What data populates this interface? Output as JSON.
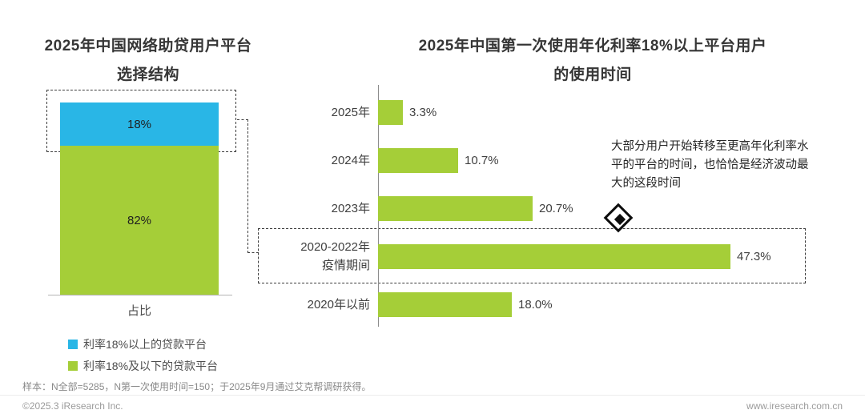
{
  "colors": {
    "green": "#a5ce38",
    "blue": "#29b6e6",
    "title_text": "#363636",
    "label_text": "#404040",
    "footer_text": "#9b9b9b"
  },
  "chart_data": [
    {
      "type": "bar",
      "subtype": "stacked_column",
      "title": "2025年中国网络助贷用户平台选择结构",
      "title_lines": [
        "2025年中国网络助贷用户平台",
        "选择结构"
      ],
      "categories": [
        "占比"
      ],
      "ylim": [
        0,
        100
      ],
      "legend_position": "bottom",
      "series": [
        {
          "name": "利率18%以上的贷款平台",
          "values": [
            18
          ],
          "label": "18%",
          "color": "#29b6e6"
        },
        {
          "name": "利率18%及以下的贷款平台",
          "values": [
            82
          ],
          "label": "82%",
          "color": "#a5ce38"
        }
      ],
      "highlight": "dashed box around the 18% segment, linked by dashed connector to the right chart's highlighted row"
    },
    {
      "type": "bar",
      "orientation": "horizontal",
      "title": "2025年中国第一次使用年化利率18%以上平台用户的使用时间",
      "title_lines": [
        "2025年中国第一次使用年化利率18%以上平台用户",
        "的使用时间"
      ],
      "categories": [
        "2025年",
        "2024年",
        "2023年",
        "2020-2022年\n疫情期间",
        "2020年以前"
      ],
      "values": [
        3.3,
        10.7,
        20.7,
        47.3,
        18.0
      ],
      "value_labels": [
        "3.3%",
        "10.7%",
        "20.7%",
        "47.3%",
        "18.0%"
      ],
      "bar_color": "#a5ce38",
      "xlim": [
        0,
        50
      ],
      "grid": false,
      "highlighted_category_index": 3,
      "annotation": "大部分用户开始转移至更高年化利率水平的平台的时间，也恰恰是经济波动最大的这段时间"
    }
  ],
  "footer": {
    "sample_note": "样本：N全部=5285，N第一次使用时间=150；于2025年9月通过艾克帮调研获得。",
    "copyright": "©2025.3 iResearch Inc.",
    "website": "www.iresearch.com.cn"
  }
}
